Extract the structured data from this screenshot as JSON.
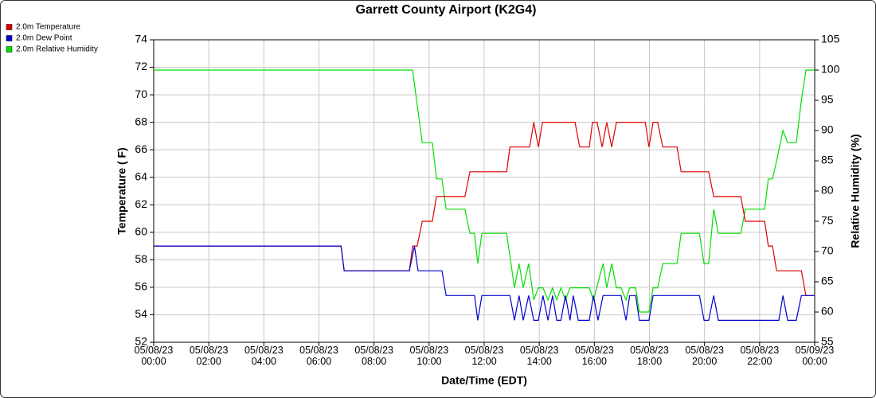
{
  "chart_data": {
    "type": "line",
    "title": "Garrett County Airport (K2G4)",
    "x_label": "Date/Time (EDT)",
    "y_label": "Temperature ( F)",
    "y2_label": "Relative Humidity (%)",
    "xlim": [
      "05/08/23 00:00",
      "05/09/23 00:00"
    ],
    "xticks": [
      "05/08/23 00:00",
      "05/08/23 02:00",
      "05/08/23 04:00",
      "05/08/23 06:00",
      "05/08/23 08:00",
      "05/08/23 10:00",
      "05/08/23 12:00",
      "05/08/23 14:00",
      "05/08/23 16:00",
      "05/08/23 18:00",
      "05/08/23 20:00",
      "05/08/23 22:00",
      "05/09/23 00:00"
    ],
    "ylim": [
      52,
      74
    ],
    "yticks": [
      52,
      54,
      56,
      58,
      60,
      62,
      64,
      66,
      68,
      70,
      72,
      74
    ],
    "y2lim": [
      55,
      105
    ],
    "y2ticks": [
      55,
      60,
      65,
      70,
      75,
      80,
      85,
      90,
      95,
      100,
      105
    ],
    "grid": true,
    "legend": "top-left",
    "series": [
      {
        "name": "2.0m Temperature",
        "color": "#e00000",
        "x": [
          "05/08/23 00:00",
          "05/08/23 06:48",
          "05/08/23 06:55",
          "05/08/23 09:17",
          "05/08/23 09:24",
          "05/08/23 09:34",
          "05/08/23 09:45",
          "05/08/23 10:07",
          "05/08/23 10:16",
          "05/08/23 11:18",
          "05/08/23 11:29",
          "05/08/23 12:49",
          "05/08/23 12:56",
          "05/08/23 13:39",
          "05/08/23 13:48",
          "05/08/23 13:58",
          "05/08/23 14:07",
          "05/08/23 15:18",
          "05/08/23 15:28",
          "05/08/23 15:49",
          "05/08/23 15:56",
          "05/08/23 16:06",
          "05/08/23 16:17",
          "05/08/23 16:27",
          "05/08/23 16:38",
          "05/08/23 16:48",
          "05/08/23 17:51",
          "05/08/23 17:59",
          "05/08/23 18:08",
          "05/08/23 18:18",
          "05/08/23 18:29",
          "05/08/23 19:00",
          "05/08/23 19:09",
          "05/08/23 20:09",
          "05/08/23 20:20",
          "05/08/23 21:19",
          "05/08/23 21:29",
          "05/08/23 22:11",
          "05/08/23 22:19",
          "05/08/23 22:28",
          "05/08/23 22:37",
          "05/08/23 23:31",
          "05/08/23 23:41",
          "05/09/23 00:00"
        ],
        "values": [
          59,
          59,
          57.2,
          57.2,
          59,
          59,
          60.8,
          60.8,
          62.6,
          62.6,
          64.4,
          64.4,
          66.2,
          66.2,
          68,
          66.2,
          68,
          68,
          66.2,
          66.2,
          68,
          68,
          66.2,
          68,
          66.2,
          68,
          68,
          66.2,
          68,
          68,
          66.2,
          66.2,
          64.4,
          64.4,
          62.6,
          62.6,
          60.8,
          60.8,
          59,
          59,
          57.2,
          57.2,
          55.4,
          55.4
        ]
      },
      {
        "name": "2.0m Dew Point",
        "color": "#0000d0",
        "x": [
          "05/08/23 00:00",
          "05/08/23 06:48",
          "05/08/23 06:55",
          "05/08/23 09:17",
          "05/08/23 09:28",
          "05/08/23 09:36",
          "05/08/23 10:28",
          "05/08/23 10:37",
          "05/08/23 11:39",
          "05/08/23 11:46",
          "05/08/23 11:55",
          "05/08/23 12:56",
          "05/08/23 13:06",
          "05/08/23 13:16",
          "05/08/23 13:25",
          "05/08/23 13:37",
          "05/08/23 13:48",
          "05/08/23 13:58",
          "05/08/23 14:08",
          "05/08/23 14:19",
          "05/08/23 14:29",
          "05/08/23 14:38",
          "05/08/23 14:47",
          "05/08/23 14:57",
          "05/08/23 15:07",
          "05/08/23 15:14",
          "05/08/23 15:25",
          "05/08/23 15:49",
          "05/08/23 15:58",
          "05/08/23 16:08",
          "05/08/23 16:19",
          "05/08/23 16:58",
          "05/08/23 17:09",
          "05/08/23 17:17",
          "05/08/23 17:30",
          "05/08/23 17:38",
          "05/08/23 17:59",
          "05/08/23 18:08",
          "05/08/23 19:49",
          "05/08/23 19:59",
          "05/08/23 20:09",
          "05/08/23 20:20",
          "05/08/23 20:30",
          "05/08/23 22:42",
          "05/08/23 22:51",
          "05/08/23 23:01",
          "05/08/23 23:20",
          "05/08/23 23:31",
          "05/09/23 00:00"
        ],
        "values": [
          59,
          59,
          57.2,
          57.2,
          59,
          57.2,
          57.2,
          55.4,
          55.4,
          53.6,
          55.4,
          55.4,
          53.6,
          55.4,
          53.6,
          55.4,
          53.6,
          53.6,
          55.4,
          53.6,
          55.4,
          53.6,
          53.6,
          55.4,
          53.6,
          55.4,
          53.6,
          53.6,
          55.4,
          53.6,
          55.4,
          55.4,
          53.6,
          55.4,
          55.4,
          53.6,
          53.6,
          55.4,
          55.4,
          53.6,
          53.6,
          55.4,
          53.6,
          53.6,
          55.4,
          53.6,
          53.6,
          55.4,
          55.4
        ]
      },
      {
        "name": "2.0m Relative Humidity",
        "color": "#00e000",
        "axis": "y2",
        "x": [
          "05/08/23 00:00",
          "05/08/23 09:24",
          "05/08/23 09:45",
          "05/08/23 10:07",
          "05/08/23 10:16",
          "05/08/23 10:28",
          "05/08/23 10:37",
          "05/08/23 11:18",
          "05/08/23 11:29",
          "05/08/23 11:39",
          "05/08/23 11:46",
          "05/08/23 11:55",
          "05/08/23 12:49",
          "05/08/23 13:06",
          "05/08/23 13:16",
          "05/08/23 13:25",
          "05/08/23 13:37",
          "05/08/23 13:48",
          "05/08/23 13:58",
          "05/08/23 14:08",
          "05/08/23 14:19",
          "05/08/23 14:29",
          "05/08/23 14:38",
          "05/08/23 14:47",
          "05/08/23 14:57",
          "05/08/23 15:07",
          "05/08/23 15:49",
          "05/08/23 15:58",
          "05/08/23 16:19",
          "05/08/23 16:27",
          "05/08/23 16:38",
          "05/08/23 16:48",
          "05/08/23 16:58",
          "05/08/23 17:09",
          "05/08/23 17:17",
          "05/08/23 17:30",
          "05/08/23 17:38",
          "05/08/23 17:59",
          "05/08/23 18:08",
          "05/08/23 18:18",
          "05/08/23 18:29",
          "05/08/23 19:00",
          "05/08/23 19:09",
          "05/08/23 19:49",
          "05/08/23 19:59",
          "05/08/23 20:09",
          "05/08/23 20:20",
          "05/08/23 20:30",
          "05/08/23 21:19",
          "05/08/23 21:29",
          "05/08/23 22:11",
          "05/08/23 22:19",
          "05/08/23 22:28",
          "05/08/23 22:37",
          "05/08/23 22:51",
          "05/08/23 23:01",
          "05/08/23 23:20",
          "05/08/23 23:31",
          "05/08/23 23:41",
          "05/09/23 00:00"
        ],
        "values": [
          100,
          100,
          88,
          88,
          82,
          82,
          77,
          77,
          73,
          73,
          68,
          73,
          73,
          64,
          68,
          64,
          68,
          62,
          64,
          64,
          62,
          64,
          62,
          64,
          62,
          64,
          64,
          62,
          68,
          64,
          68,
          64,
          64,
          62,
          64,
          64,
          60,
          60,
          64,
          64,
          68,
          68,
          73,
          73,
          68,
          68,
          77,
          73,
          73,
          77,
          77,
          82,
          82,
          85,
          90,
          88,
          88,
          95,
          100,
          100
        ]
      }
    ]
  }
}
